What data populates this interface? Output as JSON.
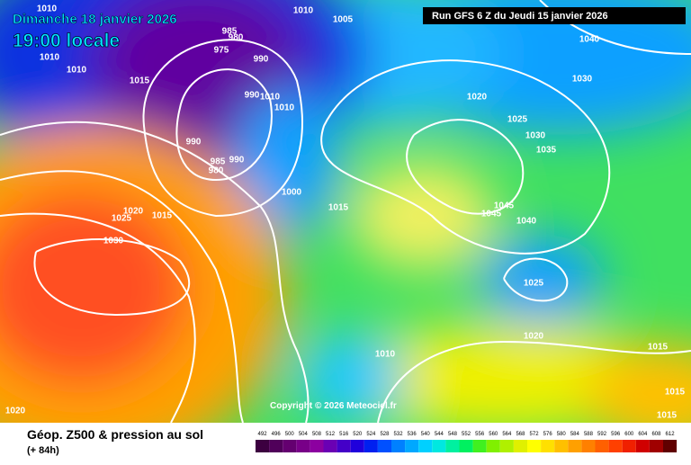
{
  "header": {
    "date": "Dimanche 18 janvier 2026",
    "time": "19:00 locale",
    "run": "Run GFS 6 Z du Jeudi 15 janvier 2026"
  },
  "copyright": "Copyright © 2026 Meteociel.fr",
  "footer": {
    "title": "Géop. Z500 & pression au sol",
    "lead": "(+ 84h)"
  },
  "scale": {
    "labels": [
      492,
      496,
      500,
      504,
      508,
      512,
      516,
      520,
      524,
      528,
      532,
      536,
      540,
      544,
      548,
      552,
      556,
      560,
      564,
      568,
      572,
      576,
      580,
      584,
      588,
      592,
      596,
      600,
      604,
      608,
      612
    ],
    "colors": [
      "#3c0040",
      "#50005a",
      "#640070",
      "#780088",
      "#8c00a0",
      "#6a00b4",
      "#4400c8",
      "#2000dc",
      "#0020f0",
      "#0050ff",
      "#0080ff",
      "#00a8ff",
      "#00d0ff",
      "#00e8e0",
      "#00f0a0",
      "#00f060",
      "#40f020",
      "#80f000",
      "#b0f000",
      "#e0f000",
      "#ffff00",
      "#ffe000",
      "#ffc000",
      "#ffa000",
      "#ff8000",
      "#ff6000",
      "#ff4000",
      "#f02000",
      "#d00000",
      "#a00000",
      "#600000"
    ]
  },
  "isobar_labels": [
    1010,
    1010,
    1005,
    1010,
    985,
    980,
    975,
    990,
    1015,
    1010,
    990,
    1010,
    1010,
    990,
    985,
    990,
    980,
    1000,
    1015,
    1020,
    1015,
    1025,
    1030,
    1020,
    1025,
    1030,
    1035,
    1040,
    1030,
    1045,
    1045,
    1040,
    1025,
    1020,
    1015,
    1010,
    1020,
    1015,
    1015
  ]
}
